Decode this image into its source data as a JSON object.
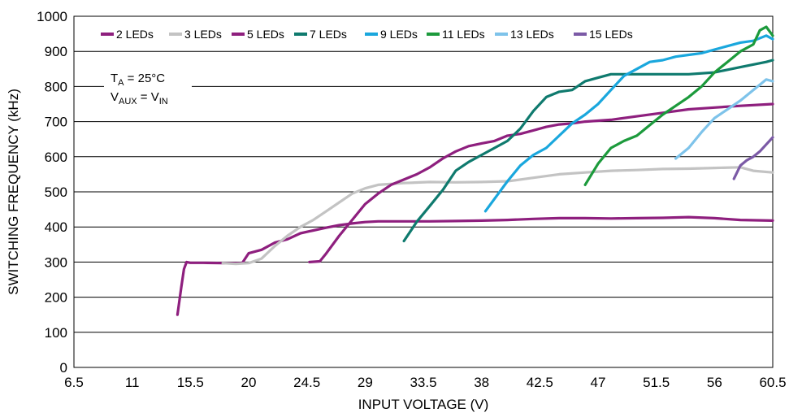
{
  "chart_data": {
    "type": "line",
    "title": "",
    "xlabel": "INPUT VOLTAGE (V)",
    "ylabel": "SWITCHING FREQUENCY (kHz)",
    "xlim": [
      6.5,
      60.5
    ],
    "ylim": [
      0,
      1000
    ],
    "xticks": [
      6.5,
      11,
      15.5,
      20,
      24.5,
      29,
      33.5,
      38,
      42.5,
      47,
      51.5,
      56,
      60.5
    ],
    "xtick_labels": [
      "6.5",
      "11",
      "15.5",
      "20",
      "24.5",
      "29",
      "33.5",
      "38",
      "42.5",
      "47",
      "51.5",
      "56",
      "60.5"
    ],
    "yticks": [
      0,
      100,
      200,
      300,
      400,
      500,
      600,
      700,
      800,
      900,
      1000
    ],
    "ytick_labels": [
      "0",
      "100",
      "200",
      "300",
      "400",
      "500",
      "600",
      "700",
      "800",
      "900",
      "1000"
    ],
    "grid": "horizontal",
    "legend": "top",
    "annotation": {
      "line1_main": "T",
      "line1_sub": "A",
      "line1_rest": " = 25°C",
      "line2_main": "V",
      "line2_sub": "AUX",
      "line2_mid": " = V",
      "line2_sub2": "IN"
    },
    "series": [
      {
        "name": "2 LEDs",
        "color": "#8e1f7e",
        "x": [
          14.5,
          14.8,
          15.0,
          15.2,
          15.5,
          16.5,
          18.0,
          19.5,
          20.0,
          21.0,
          22.0,
          23.0,
          24.0,
          25.0,
          26.0,
          27.0,
          28.0,
          29.0,
          30.0,
          32.0,
          34.0,
          36.0,
          38.0,
          40.0,
          42.0,
          44.0,
          46.0,
          48.0,
          50.0,
          52.0,
          54.0,
          56.0,
          58.0,
          60.5
        ],
        "y": [
          150,
          230,
          280,
          300,
          298,
          298,
          297,
          297,
          325,
          335,
          355,
          365,
          382,
          390,
          398,
          405,
          410,
          414,
          416,
          416,
          416,
          417,
          418,
          420,
          423,
          425,
          425,
          424,
          425,
          426,
          428,
          425,
          420,
          418
        ]
      },
      {
        "name": "3 LEDs",
        "color": "#c3c3c3",
        "x": [
          18.0,
          19.0,
          20.0,
          21.0,
          22.0,
          23.0,
          24.0,
          25.0,
          26.0,
          27.0,
          28.0,
          29.0,
          30.0,
          32.0,
          34.0,
          36.0,
          38.0,
          40.0,
          42.0,
          44.0,
          46.0,
          48.0,
          50.0,
          52.0,
          54.0,
          56.0,
          58.0,
          59.0,
          60.5
        ],
        "y": [
          297,
          295,
          297,
          310,
          345,
          375,
          400,
          420,
          445,
          470,
          495,
          510,
          520,
          525,
          528,
          527,
          528,
          530,
          540,
          550,
          555,
          560,
          562,
          565,
          566,
          568,
          570,
          560,
          555
        ]
      },
      {
        "name": "5 LEDs",
        "color": "#8e1f7e",
        "x": [
          24.7,
          25.5,
          26.0,
          27.0,
          28.0,
          29.0,
          30.0,
          31.0,
          32.0,
          33.0,
          34.0,
          35.0,
          36.0,
          37.0,
          38.0,
          39.0,
          40.0,
          41.0,
          42.0,
          43.0,
          44.0,
          45.0,
          46.0,
          48.0,
          50.0,
          52.0,
          54.0,
          56.0,
          58.0,
          60.5
        ],
        "y": [
          300,
          302,
          325,
          375,
          420,
          465,
          495,
          520,
          535,
          550,
          570,
          595,
          615,
          630,
          638,
          645,
          660,
          665,
          675,
          685,
          692,
          695,
          700,
          705,
          715,
          725,
          735,
          740,
          745,
          750
        ]
      },
      {
        "name": "7 LEDs",
        "color": "#0f7a6e",
        "x": [
          32.0,
          33.0,
          34.0,
          35.0,
          36.0,
          37.0,
          38.0,
          39.0,
          40.0,
          41.0,
          42.0,
          43.0,
          44.0,
          45.0,
          46.0,
          47.0,
          48.0,
          50.0,
          52.0,
          54.0,
          56.0,
          58.0,
          60.0,
          60.5
        ],
        "y": [
          360,
          415,
          460,
          505,
          560,
          585,
          605,
          625,
          645,
          680,
          730,
          770,
          785,
          790,
          815,
          825,
          835,
          835,
          835,
          835,
          840,
          855,
          870,
          875
        ]
      },
      {
        "name": "9 LEDs",
        "color": "#1aa7dd",
        "x": [
          38.3,
          39.0,
          40.0,
          41.0,
          42.0,
          43.0,
          44.0,
          45.0,
          46.0,
          47.0,
          48.0,
          49.0,
          50.0,
          51.0,
          52.0,
          53.0,
          54.0,
          55.0,
          56.0,
          57.0,
          58.0,
          59.0,
          60.0,
          60.5
        ],
        "y": [
          445,
          480,
          530,
          575,
          605,
          625,
          660,
          695,
          720,
          750,
          790,
          830,
          850,
          870,
          875,
          885,
          890,
          895,
          905,
          915,
          925,
          930,
          945,
          935
        ]
      },
      {
        "name": "11 LEDs",
        "color": "#1c9a3c",
        "x": [
          46.0,
          47.0,
          48.0,
          49.0,
          50.0,
          51.0,
          52.0,
          53.0,
          54.0,
          55.0,
          56.0,
          57.0,
          58.0,
          59.0,
          59.5,
          60.0,
          60.5
        ],
        "y": [
          520,
          580,
          625,
          645,
          660,
          690,
          720,
          745,
          770,
          800,
          840,
          870,
          900,
          920,
          960,
          970,
          945
        ]
      },
      {
        "name": "13 LEDs",
        "color": "#7ec3ea",
        "x": [
          53.0,
          54.0,
          55.0,
          56.0,
          57.0,
          58.0,
          59.0,
          59.5,
          60.0,
          60.5
        ],
        "y": [
          595,
          625,
          670,
          710,
          735,
          760,
          790,
          805,
          820,
          815
        ]
      },
      {
        "name": "15 LEDs",
        "color": "#7b5aa6",
        "x": [
          57.5,
          58.0,
          58.5,
          59.0,
          59.5,
          60.0,
          60.5
        ],
        "y": [
          537,
          575,
          590,
          600,
          615,
          635,
          655
        ]
      }
    ]
  }
}
